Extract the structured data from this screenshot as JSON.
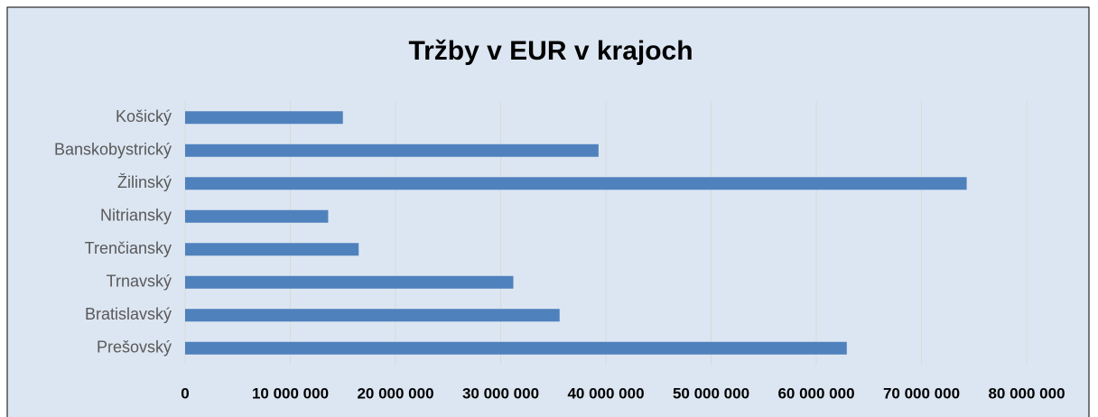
{
  "chart_data": {
    "type": "barh",
    "title": "Tržby v EUR v krajoch",
    "categories": [
      "Košický",
      "Banskobystrický",
      "Žilinský",
      "Nitriansky",
      "Trenčiansky",
      "Trnavský",
      "Bratislavský",
      "Prešovský"
    ],
    "values": [
      15000000,
      39300000,
      74300000,
      13600000,
      16500000,
      31200000,
      35600000,
      62900000
    ],
    "color": "#4f81bd",
    "xlim": [
      0,
      80000000
    ],
    "xticks": [
      0,
      {
        "value": 10000000,
        "label": "10 000 000"
      },
      {
        "value": 20000000,
        "label": "20 000 000"
      },
      {
        "value": 30000000,
        "label": "30 000 000"
      },
      {
        "value": 40000000,
        "label": "40 000 000"
      },
      {
        "value": 50000000,
        "label": "50 000 000"
      },
      {
        "value": 60000000,
        "label": "60 000 000"
      },
      {
        "value": 70000000,
        "label": "70 000 000"
      },
      {
        "value": 80000000,
        "label": "80 000 000"
      }
    ],
    "grid": true
  }
}
